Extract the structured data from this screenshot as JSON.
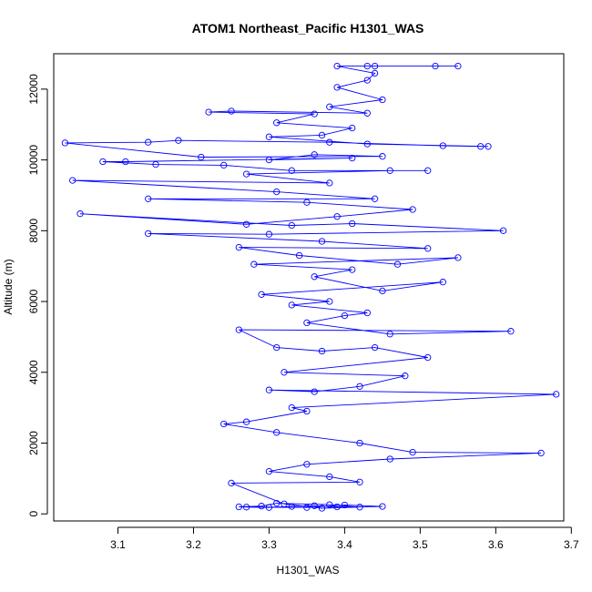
{
  "chart_data": {
    "type": "scatter",
    "title": "ATOM1 Northeast_Pacific H1301_WAS",
    "xlabel": "H1301_WAS",
    "ylabel": "Altitude (m)",
    "xlim": [
      3.015,
      3.69
    ],
    "ylim": [
      -200,
      13000
    ],
    "xticks": [
      3.1,
      3.2,
      3.3,
      3.4,
      3.5,
      3.6,
      3.7
    ],
    "yticks": [
      0,
      2000,
      4000,
      6000,
      8000,
      10000,
      12000
    ],
    "grid": false,
    "legend": "none",
    "style": "points connected by lines (open circles)",
    "color": "#0000ff",
    "series": [
      {
        "points": [
          [
            3.27,
            190
          ],
          [
            3.3,
            180
          ],
          [
            3.33,
            210
          ],
          [
            3.36,
            230
          ],
          [
            3.39,
            200
          ],
          [
            3.42,
            190
          ],
          [
            3.38,
            260
          ],
          [
            3.31,
            300
          ],
          [
            3.29,
            220
          ],
          [
            3.26,
            200
          ],
          [
            3.35,
            180
          ],
          [
            3.4,
            250
          ],
          [
            3.45,
            210
          ],
          [
            3.37,
            160
          ],
          [
            3.32,
            280
          ],
          [
            3.25,
            870
          ],
          [
            3.42,
            900
          ],
          [
            3.38,
            1050
          ],
          [
            3.3,
            1200
          ],
          [
            3.35,
            1400
          ],
          [
            3.46,
            1550
          ],
          [
            3.66,
            1720
          ],
          [
            3.49,
            1740
          ],
          [
            3.42,
            2000
          ],
          [
            3.31,
            2300
          ],
          [
            3.24,
            2540
          ],
          [
            3.27,
            2600
          ],
          [
            3.35,
            2900
          ],
          [
            3.33,
            3000
          ],
          [
            3.68,
            3380
          ],
          [
            3.3,
            3500
          ],
          [
            3.36,
            3450
          ],
          [
            3.42,
            3600
          ],
          [
            3.48,
            3900
          ],
          [
            3.32,
            4000
          ],
          [
            3.51,
            4420
          ],
          [
            3.44,
            4700
          ],
          [
            3.37,
            4600
          ],
          [
            3.31,
            4700
          ],
          [
            3.26,
            5200
          ],
          [
            3.62,
            5160
          ],
          [
            3.46,
            5080
          ],
          [
            3.35,
            5400
          ],
          [
            3.4,
            5600
          ],
          [
            3.43,
            5680
          ],
          [
            3.33,
            5900
          ],
          [
            3.38,
            6000
          ],
          [
            3.29,
            6200
          ],
          [
            3.53,
            6550
          ],
          [
            3.45,
            6300
          ],
          [
            3.36,
            6700
          ],
          [
            3.41,
            6900
          ],
          [
            3.28,
            7050
          ],
          [
            3.55,
            7240
          ],
          [
            3.47,
            7050
          ],
          [
            3.34,
            7300
          ],
          [
            3.26,
            7530
          ],
          [
            3.51,
            7500
          ],
          [
            3.37,
            7700
          ],
          [
            3.14,
            7920
          ],
          [
            3.3,
            7900
          ],
          [
            3.61,
            8000
          ],
          [
            3.41,
            8200
          ],
          [
            3.33,
            8150
          ],
          [
            3.05,
            8480
          ],
          [
            3.27,
            8180
          ],
          [
            3.39,
            8400
          ],
          [
            3.49,
            8600
          ],
          [
            3.35,
            8800
          ],
          [
            3.14,
            8900
          ],
          [
            3.44,
            8900
          ],
          [
            3.31,
            9100
          ],
          [
            3.04,
            9420
          ],
          [
            3.38,
            9350
          ],
          [
            3.27,
            9600
          ],
          [
            3.46,
            9700
          ],
          [
            3.51,
            9700
          ],
          [
            3.33,
            9700
          ],
          [
            3.24,
            9850
          ],
          [
            3.15,
            9870
          ],
          [
            3.08,
            9950
          ],
          [
            3.11,
            9950
          ],
          [
            3.41,
            10050
          ],
          [
            3.3,
            10000
          ],
          [
            3.36,
            10150
          ],
          [
            3.45,
            10100
          ],
          [
            3.21,
            10080
          ],
          [
            3.03,
            10480
          ],
          [
            3.14,
            10500
          ],
          [
            3.18,
            10550
          ],
          [
            3.38,
            10500
          ],
          [
            3.53,
            10400
          ],
          [
            3.58,
            10380
          ],
          [
            3.59,
            10380
          ],
          [
            3.43,
            10450
          ],
          [
            3.3,
            10650
          ],
          [
            3.37,
            10700
          ],
          [
            3.41,
            10900
          ],
          [
            3.31,
            11050
          ],
          [
            3.36,
            11300
          ],
          [
            3.22,
            11350
          ],
          [
            3.25,
            11380
          ],
          [
            3.43,
            11320
          ],
          [
            3.38,
            11500
          ],
          [
            3.45,
            11700
          ],
          [
            3.39,
            12050
          ],
          [
            3.43,
            12250
          ],
          [
            3.44,
            12450
          ],
          [
            3.39,
            12650
          ],
          [
            3.43,
            12650
          ],
          [
            3.44,
            12650
          ],
          [
            3.52,
            12650
          ],
          [
            3.55,
            12650
          ]
        ]
      }
    ]
  }
}
